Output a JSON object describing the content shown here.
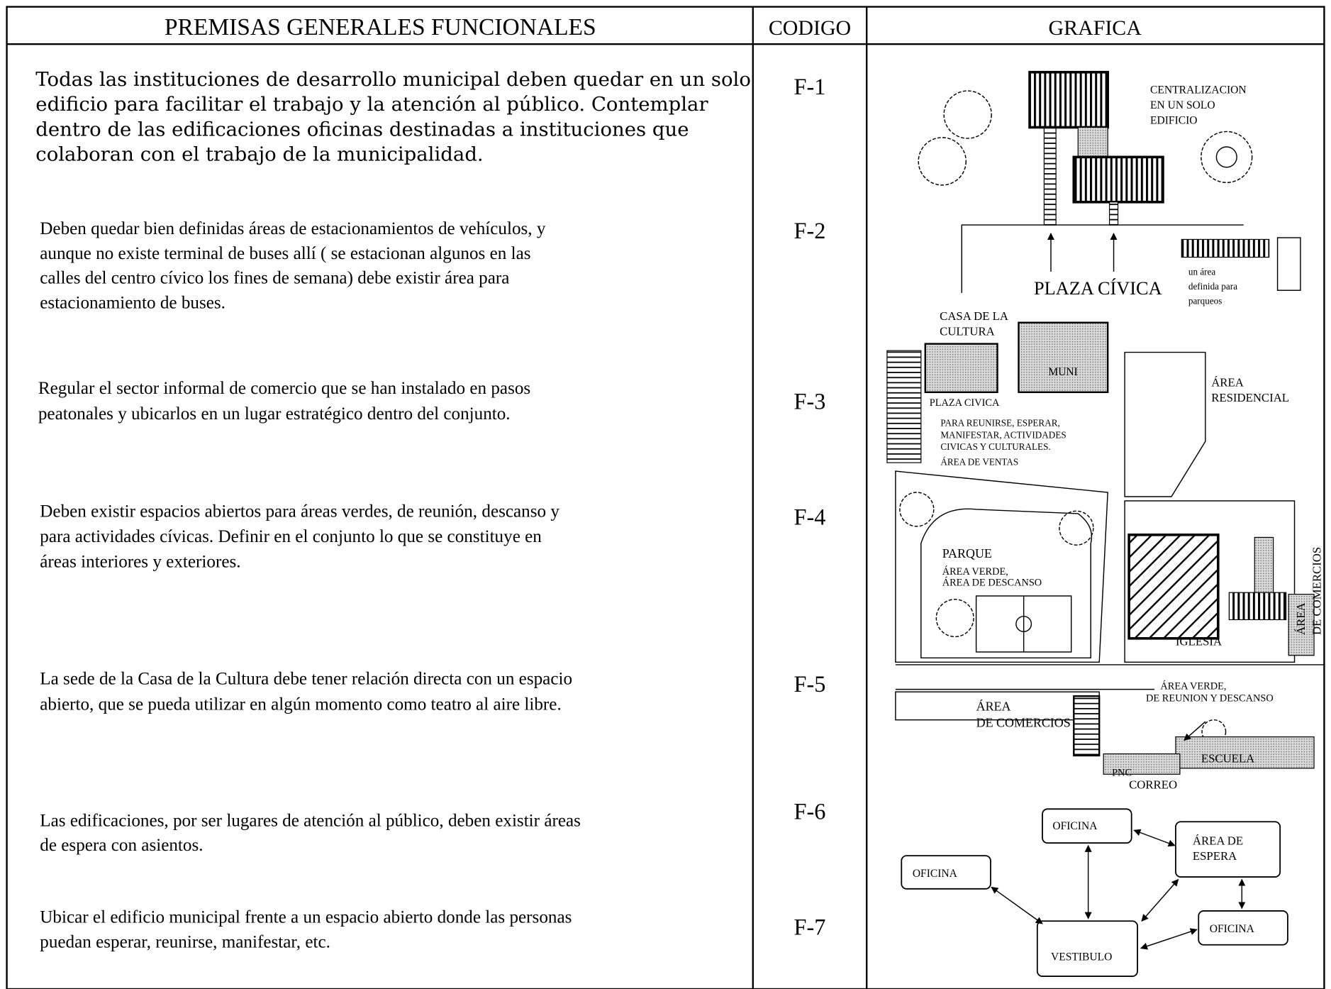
{
  "table": {
    "headers": [
      "PREMISAS GENERALES FUNCIONALES",
      "CODIGO",
      "GRAFICA"
    ],
    "rows": [
      {
        "lines": [
          "Todas las instituciones de desarrollo municipal deben quedar en un solo",
          "edificio para facilitar el trabajo y la atención al público. Contemplar",
          "dentro de las edificaciones oficinas destinadas a instituciones que",
          "colaboran con el trabajo de la municipalidad."
        ],
        "code": "F-1"
      },
      {
        "lines": [
          "Deben quedar bien definidas áreas de estacionamientos de vehículos, y",
          "aunque no existe terminal de buses allí ( se estacionan algunos en las",
          "calles del centro cívico los fines de semana) debe existir área para",
          "estacionamiento de buses."
        ],
        "code": "F-2"
      },
      {
        "lines": [
          "Regular el sector informal de comercio que se han instalado en pasos",
          "peatonales  y ubicarlos en un lugar estratégico dentro del conjunto."
        ],
        "code": "F-3"
      },
      {
        "lines": [
          "Deben existir espacios abiertos para áreas verdes, de reunión, descanso y",
          "para actividades cívicas. Definir en el conjunto lo que se constituye en",
          "áreas interiores y exteriores."
        ],
        "code": "F-4"
      },
      {
        "lines": [
          "La sede de la Casa de la Cultura debe tener relación directa con un espacio",
          "abierto, que se pueda utilizar en algún momento como teatro al aire libre."
        ],
        "code": "F-5"
      },
      {
        "lines": [
          "Las edificaciones, por ser lugares de atención al público, deben existir áreas",
          "de espera con asientos."
        ],
        "code": "F-6"
      },
      {
        "lines": [
          "Ubicar el edificio municipal frente a un espacio abierto donde las personas",
          "puedan esperar, reunirse, manifestar, etc."
        ],
        "code": "F-7"
      }
    ]
  },
  "graphic": {
    "labels": [
      "CENTRALIZACION",
      "EN UN SOLO",
      "EDIFICIO",
      "PLAZA CÍVICA",
      "un área",
      "definida para",
      "parqueos",
      "CASA DE LA",
      "CULTURA",
      "MUNI",
      "PLAZA CIVICA",
      "PARA REUNIRSE, ESPERAR,",
      "MANIFESTAR, ACTIVIDADES",
      "CIVICAS Y CULTURALES.",
      "ÁREA DE VENTAS",
      "ÁREA",
      "RESIDENCIAL",
      "PARQUE",
      "ÁREA VERDE,",
      "ÁREA DE DESCANSO",
      "IGLESIA",
      "ÁREA",
      "DE COMERCIOS",
      "ÁREA VERDE,",
      "DE REUNION Y DESCANSO",
      "ÁREA",
      "DE COMERCIOS",
      "ESCUELA",
      "PNC",
      "CORREO",
      "OFICINA",
      "ÁREA DE",
      "ESPERA",
      "OFICINA",
      "OFICINA",
      "VESTIBULO"
    ]
  }
}
